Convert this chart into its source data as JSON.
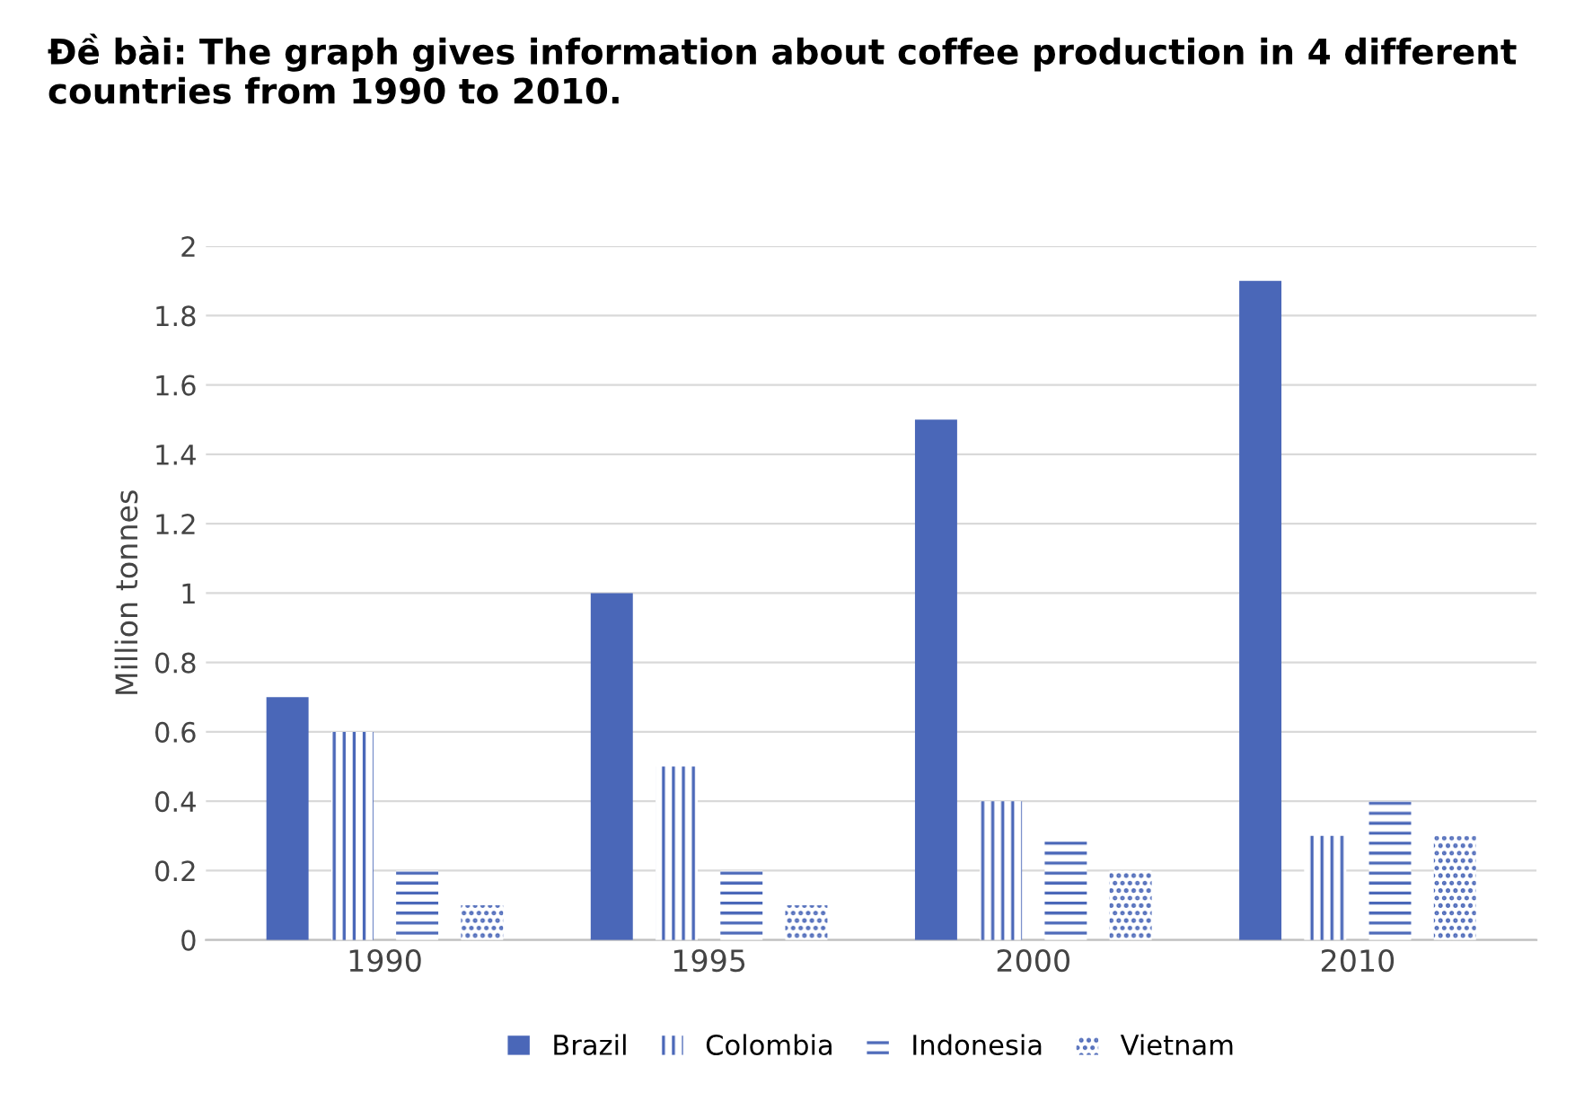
{
  "chart_data": {
    "type": "bar",
    "title": "Đề bài: The graph gives information about coffee production in 4 different countries from 1990 to 2010.",
    "ylabel": "Million tonnes",
    "categories": [
      "1990",
      "1995",
      "2000",
      "2010"
    ],
    "series": [
      {
        "name": "Brazil",
        "color": "#4a67b8",
        "values": [
          0.7,
          1.0,
          1.5,
          1.9
        ]
      },
      {
        "name": "Colombia",
        "color": "#4a67b8",
        "values": [
          0.6,
          0.5,
          0.4,
          0.3
        ]
      },
      {
        "name": "Indonesia",
        "color": "#4a67b8",
        "values": [
          0.2,
          0.2,
          0.3,
          0.4
        ]
      },
      {
        "name": "Vietnam",
        "color": "#4a67b8",
        "values": [
          0.1,
          0.1,
          0.2,
          0.3
        ]
      }
    ],
    "ylim": [
      0,
      2
    ],
    "yticks": [
      0,
      0.2,
      0.4,
      0.6,
      0.8,
      1,
      1.2,
      1.4,
      1.6,
      1.8,
      2
    ],
    "grid": "y",
    "legend": "bottom"
  }
}
